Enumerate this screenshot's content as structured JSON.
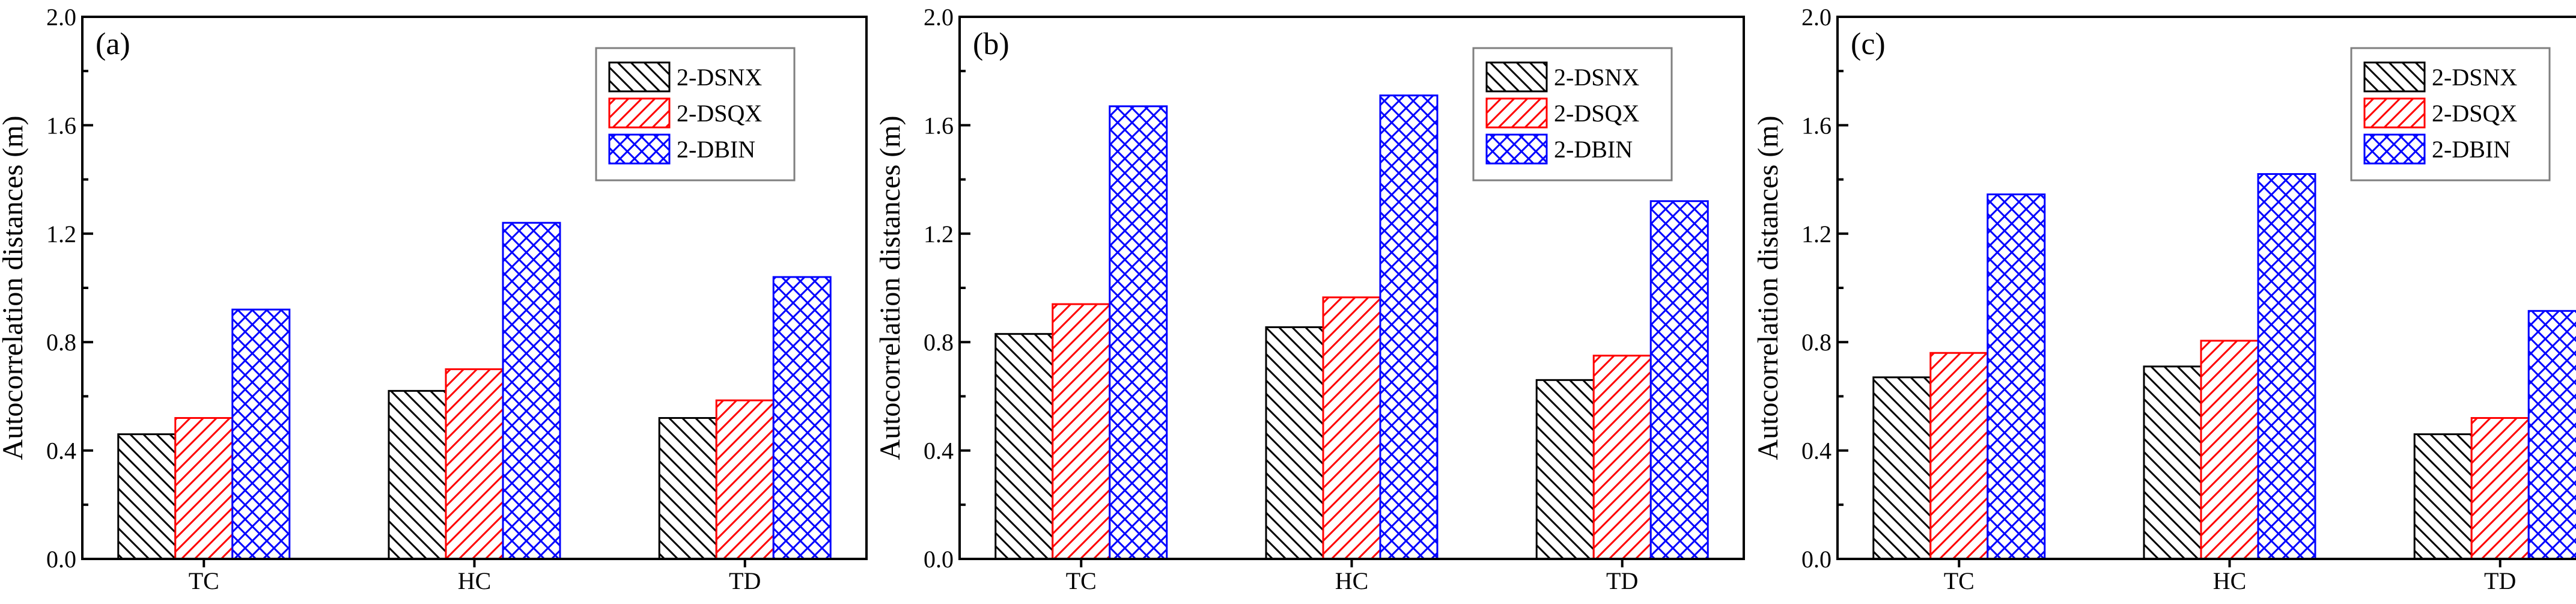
{
  "chart_data": [
    {
      "type": "bar",
      "panel_label": "(a)",
      "categories": [
        "TC",
        "HC",
        "TD"
      ],
      "ylabel": "Autocorrelation distances (m)",
      "ylim": [
        0,
        2.0
      ],
      "yticks": [
        "0.0",
        "0.4",
        "0.8",
        "1.2",
        "1.6",
        "2.0"
      ],
      "legend_position": "top-right",
      "series": [
        {
          "name": "2-DSNX",
          "color": "#000000",
          "pattern": "back-diagonal",
          "values": [
            0.46,
            0.62,
            0.52
          ]
        },
        {
          "name": "2-DSQX",
          "color": "#ff0000",
          "pattern": "forward-diagonal",
          "values": [
            0.52,
            0.7,
            0.585
          ]
        },
        {
          "name": "2-DBIN",
          "color": "#0000ff",
          "pattern": "crosshatch",
          "values": [
            0.92,
            1.24,
            1.04
          ]
        }
      ]
    },
    {
      "type": "bar",
      "panel_label": "(b)",
      "categories": [
        "TC",
        "HC",
        "TD"
      ],
      "ylabel": "Autocorrelation distances (m)",
      "ylim": [
        0,
        2.0
      ],
      "yticks": [
        "0.0",
        "0.4",
        "0.8",
        "1.2",
        "1.6",
        "2.0"
      ],
      "legend_position": "top-right",
      "series": [
        {
          "name": "2-DSNX",
          "color": "#000000",
          "pattern": "back-diagonal",
          "values": [
            0.83,
            0.855,
            0.66
          ]
        },
        {
          "name": "2-DSQX",
          "color": "#ff0000",
          "pattern": "forward-diagonal",
          "values": [
            0.94,
            0.965,
            0.75
          ]
        },
        {
          "name": "2-DBIN",
          "color": "#0000ff",
          "pattern": "crosshatch",
          "values": [
            1.67,
            1.71,
            1.32
          ]
        }
      ]
    },
    {
      "type": "bar",
      "panel_label": "(c)",
      "categories": [
        "TC",
        "HC",
        "TD"
      ],
      "ylabel": "Autocorrelation distances (m)",
      "ylim": [
        0,
        2.0
      ],
      "yticks": [
        "0.0",
        "0.4",
        "0.8",
        "1.2",
        "1.6",
        "2.0"
      ],
      "legend_position": "top-right",
      "series": [
        {
          "name": "2-DSNX",
          "color": "#000000",
          "pattern": "back-diagonal",
          "values": [
            0.67,
            0.71,
            0.46
          ]
        },
        {
          "name": "2-DSQX",
          "color": "#ff0000",
          "pattern": "forward-diagonal",
          "values": [
            0.76,
            0.805,
            0.52
          ]
        },
        {
          "name": "2-DBIN",
          "color": "#0000ff",
          "pattern": "crosshatch",
          "values": [
            1.345,
            1.42,
            0.915
          ]
        }
      ]
    }
  ]
}
